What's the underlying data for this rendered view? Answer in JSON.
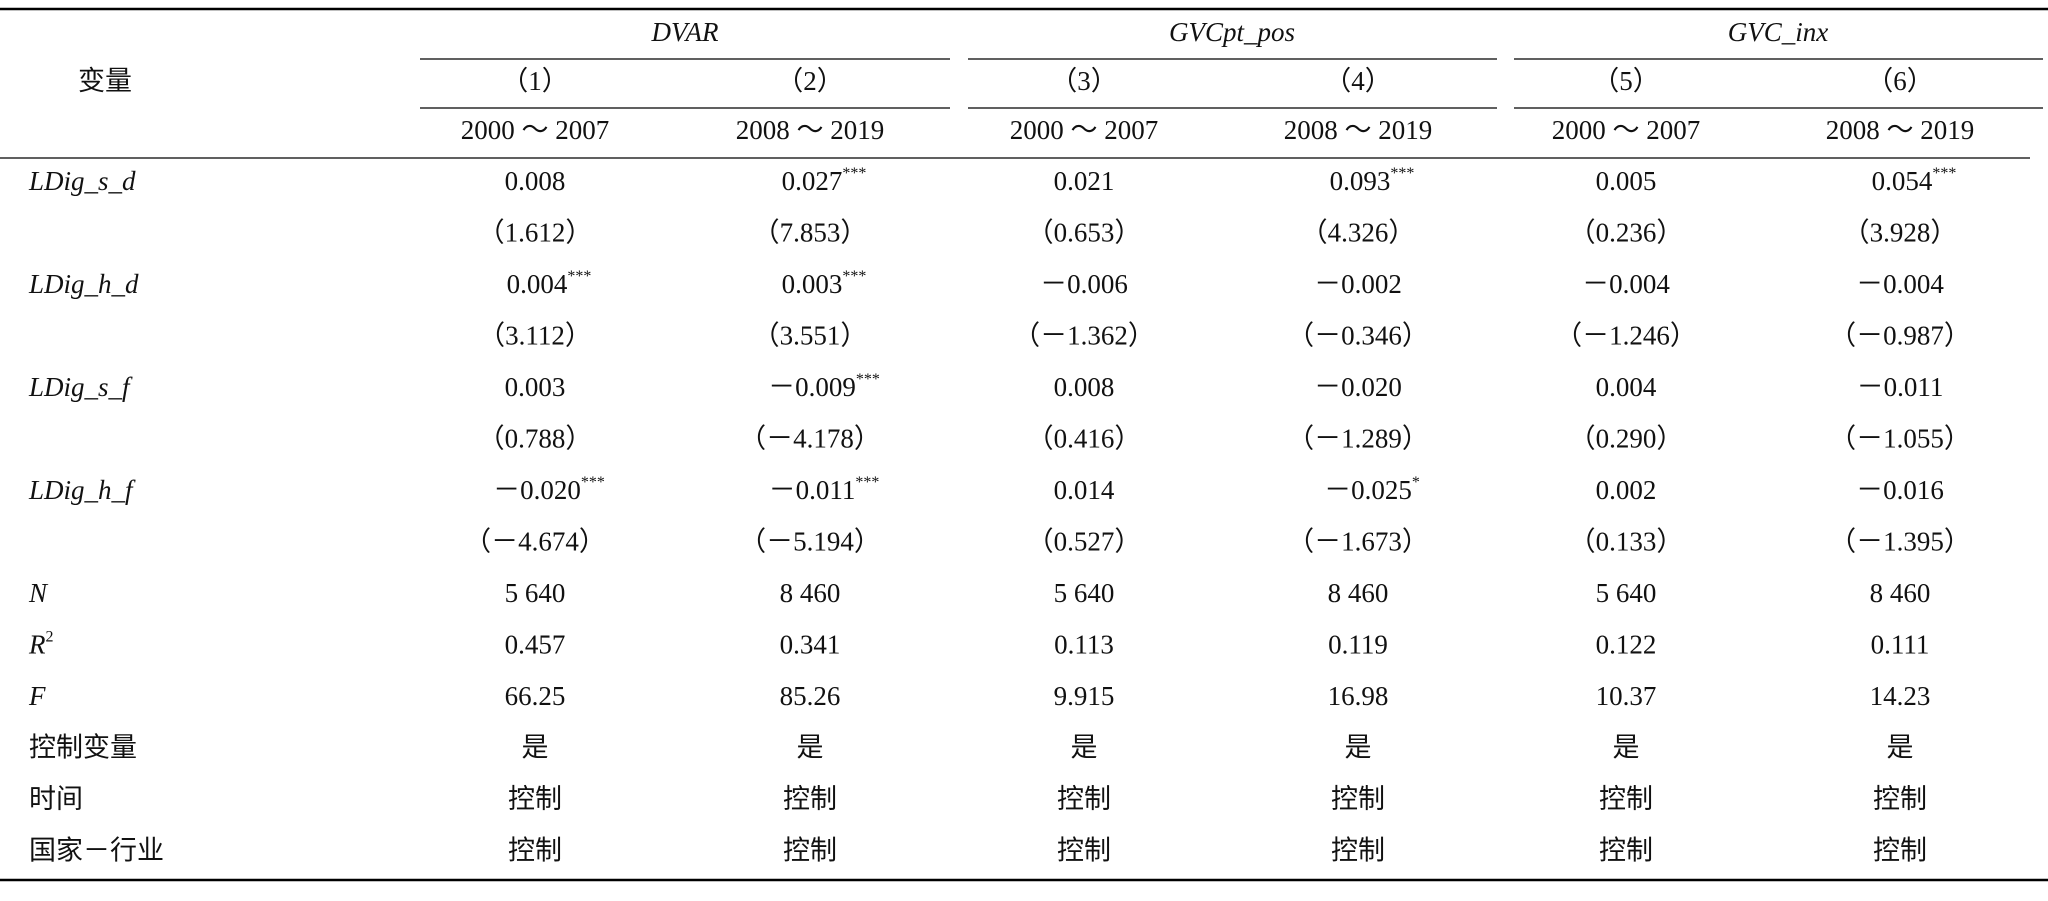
{
  "table": {
    "corner": "变量",
    "groups": [
      "DVAR",
      "GVCpt_pos",
      "GVC_inx"
    ],
    "models": [
      "（1）",
      "（2）",
      "（3）",
      "（4）",
      "（5）",
      "（6）"
    ],
    "periods": [
      "2000 ～ 2007",
      "2008 ～ 2019",
      "2000 ～ 2007",
      "2008 ～ 2019",
      "2000 ～ 2007",
      "2008 ～ 2019"
    ],
    "rows": [
      {
        "label": "LDig_s_d",
        "cells": [
          "0.008",
          {
            "text": "0.027",
            "sig": "***"
          },
          "0.021",
          {
            "text": "0.093",
            "sig": "***"
          },
          "0.005",
          {
            "text": "0.054",
            "sig": "***"
          }
        ]
      },
      {
        "cells": [
          "（1.612）",
          "（7.853）",
          "（0.653）",
          "（4.326）",
          "（0.236）",
          "（3.928）"
        ]
      },
      {
        "label": "LDig_h_d",
        "cells": [
          {
            "text": "0.004",
            "sig": "***"
          },
          {
            "text": "0.003",
            "sig": "***"
          },
          "－0.006",
          "－0.002",
          "－0.004",
          "－0.004"
        ]
      },
      {
        "cells": [
          "（3.112）",
          "（3.551）",
          "（－1.362）",
          "（－0.346）",
          "（－1.246）",
          "（－0.987）"
        ]
      },
      {
        "label": "LDig_s_f",
        "cells": [
          "0.003",
          {
            "text": "－0.009",
            "sig": "***"
          },
          "0.008",
          "－0.020",
          "0.004",
          "－0.011"
        ]
      },
      {
        "cells": [
          "（0.788）",
          "（－4.178）",
          "（0.416）",
          "（－1.289）",
          "（0.290）",
          "（－1.055）"
        ]
      },
      {
        "label": "LDig_h_f",
        "cells": [
          {
            "text": "－0.020",
            "sig": "***"
          },
          {
            "text": "－0.011",
            "sig": "***"
          },
          "0.014",
          {
            "text": "－0.025",
            "sig": "*"
          },
          "0.002",
          "－0.016"
        ]
      },
      {
        "cells": [
          "（－4.674）",
          "（－5.194）",
          "（0.527）",
          "（－1.673）",
          "（0.133）",
          "（－1.395）"
        ]
      },
      {
        "label": "N",
        "cells": [
          "5 640",
          "8 460",
          "5 640",
          "8 460",
          "5 640",
          "8 460"
        ]
      },
      {
        "label": {
          "text": "R",
          "sup": "2"
        },
        "cells": [
          "0.457",
          "0.341",
          "0.113",
          "0.119",
          "0.122",
          "0.111"
        ]
      },
      {
        "label": "F",
        "cells": [
          "66.25",
          "85.26",
          "9.915",
          "16.98",
          "10.37",
          "14.23"
        ]
      },
      {
        "label": "控制变量",
        "plain": true,
        "cells": [
          "是",
          "是",
          "是",
          "是",
          "是",
          "是"
        ]
      },
      {
        "label": "时间",
        "plain": true,
        "cells": [
          "控制",
          "控制",
          "控制",
          "控制",
          "控制",
          "控制"
        ]
      },
      {
        "label": "国家－行业",
        "plain": true,
        "cells": [
          "控制",
          "控制",
          "控制",
          "控制",
          "控制",
          "控制"
        ]
      }
    ]
  }
}
